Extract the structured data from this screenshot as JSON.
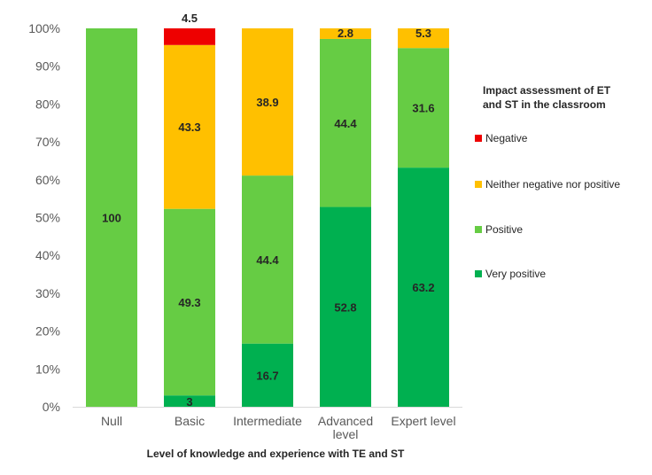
{
  "chart_data": {
    "type": "bar",
    "stacked": true,
    "percent": true,
    "title": "",
    "xlabel": "Level of knowledge and experience with TE and ST",
    "ylabel": "",
    "ylim": [
      0,
      100
    ],
    "y_ticks": [
      "0%",
      "10%",
      "20%",
      "30%",
      "40%",
      "50%",
      "60%",
      "70%",
      "80%",
      "90%",
      "100%"
    ],
    "categories": [
      [
        "Null"
      ],
      [
        "Basic"
      ],
      [
        "Intermediate"
      ],
      [
        "Advanced",
        "level"
      ],
      [
        "Expert level"
      ]
    ],
    "series": [
      {
        "name": "Very positive",
        "color": "#00B050",
        "values": [
          0,
          3,
          16.7,
          52.8,
          63.2
        ]
      },
      {
        "name": "Positive",
        "color": "#66CC44",
        "values": [
          100,
          49.3,
          44.4,
          44.4,
          31.6
        ]
      },
      {
        "name": "Neither negative nor positive",
        "color": "#FFC000",
        "values": [
          0,
          43.3,
          38.9,
          2.8,
          5.3
        ]
      },
      {
        "name": "Negative",
        "color": "#EE0000",
        "values": [
          0,
          4.5,
          0,
          0,
          0
        ]
      }
    ],
    "labels": [
      [
        null,
        "3",
        "16.7",
        "52.8",
        "63.2"
      ],
      [
        "100",
        "49.3",
        "44.4",
        "44.4",
        "31.6"
      ],
      [
        null,
        "43.3",
        "38.9",
        "2.8",
        "5.3"
      ],
      [
        null,
        "4.5",
        null,
        null,
        null
      ]
    ],
    "legend": {
      "title": [
        "Impact assessment of ET",
        "and ST in the classroom"
      ],
      "order": [
        "Negative",
        "Neither negative nor positive",
        "Positive",
        "Very positive"
      ],
      "position": "right"
    },
    "grid": false
  }
}
